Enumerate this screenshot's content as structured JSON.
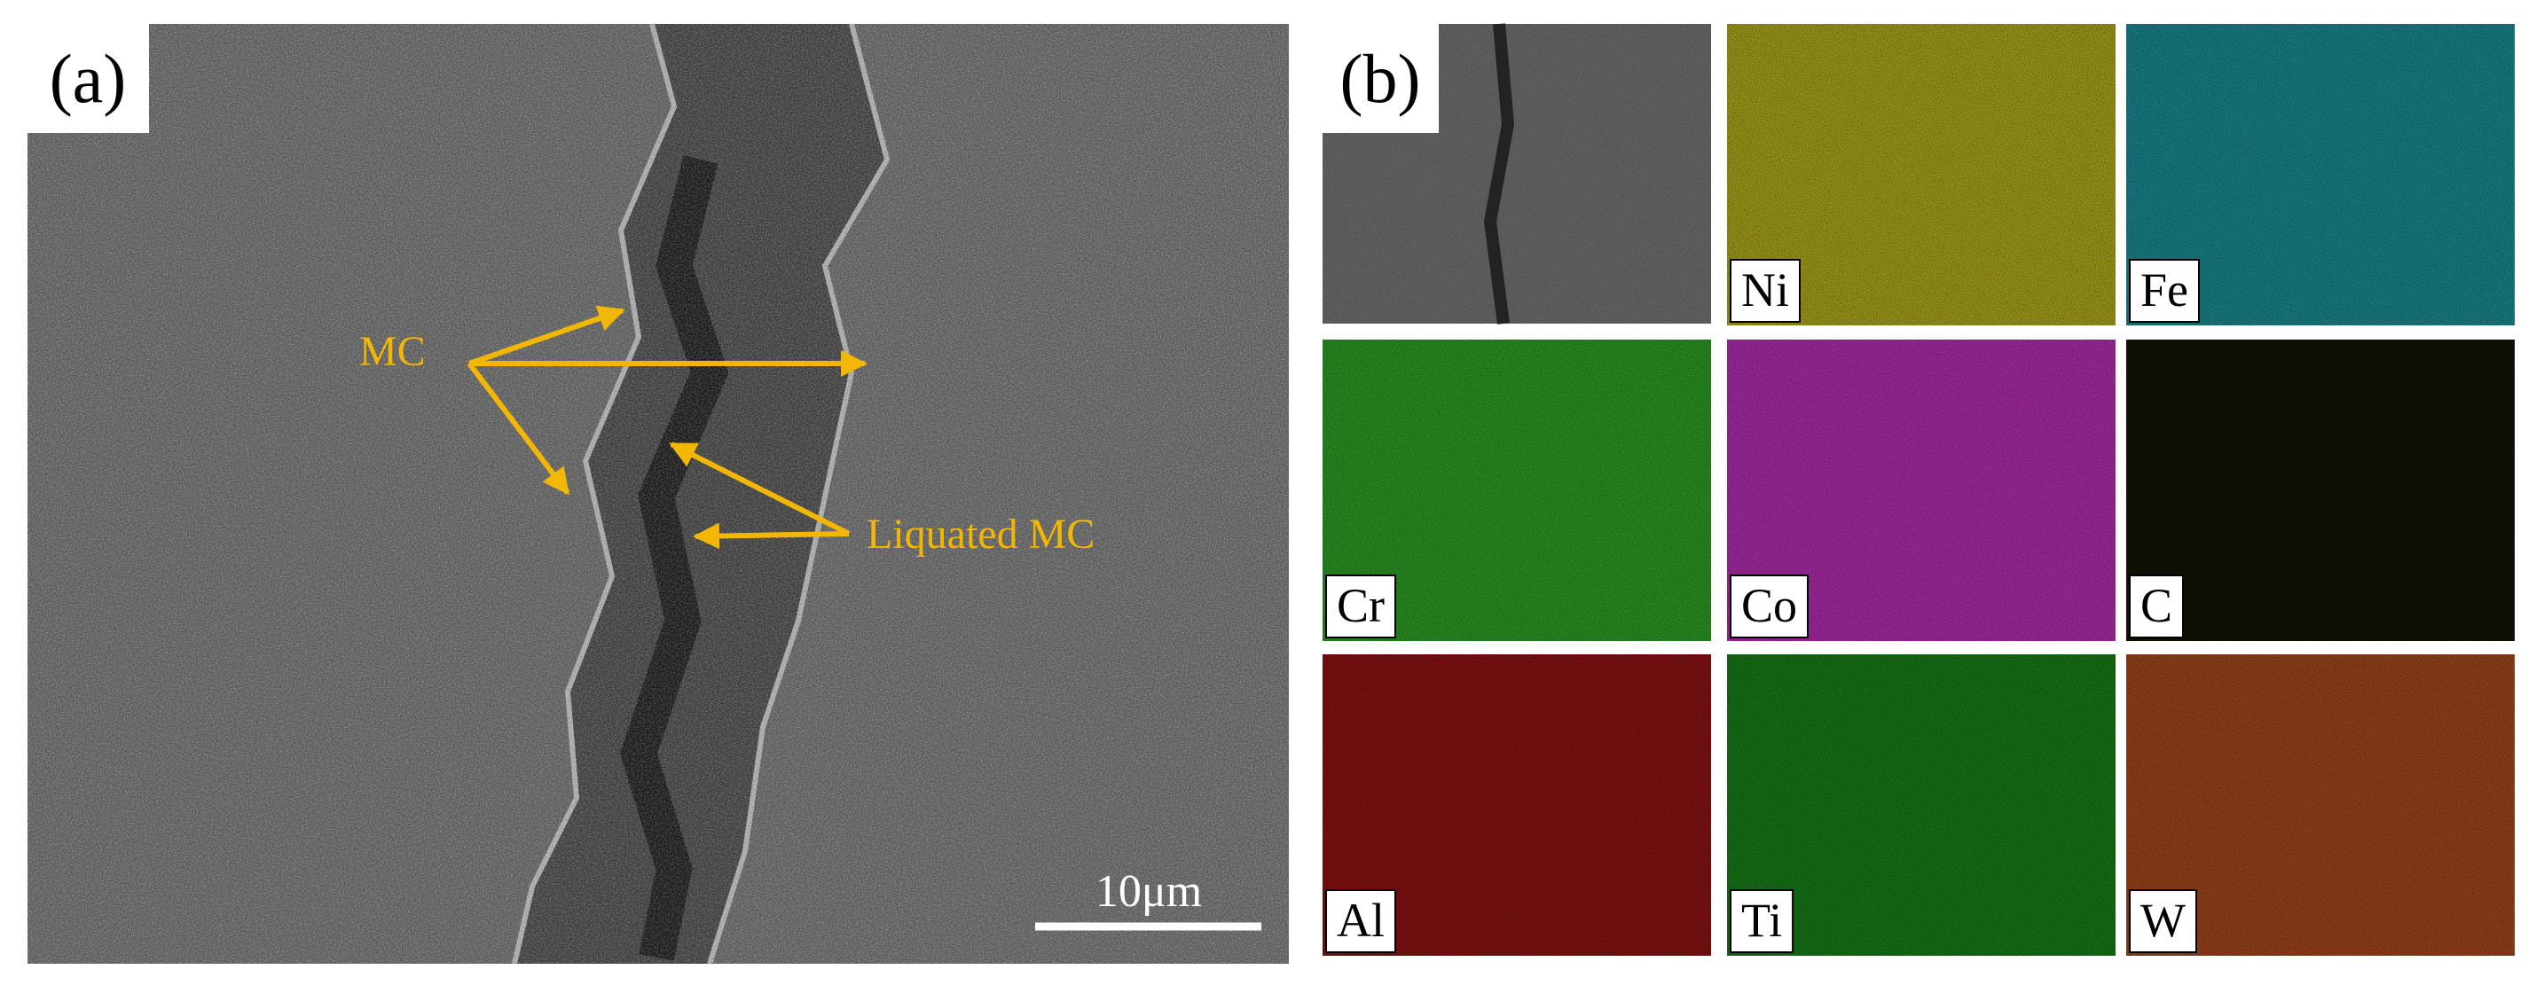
{
  "panel_a": {
    "label": "(a)",
    "annotations": [
      "MC",
      "Liquated MC"
    ],
    "scale_bar": "10μm"
  },
  "panel_b": {
    "label": "(b)",
    "maps": [
      "Ni",
      "Fe",
      "Cr",
      "Co",
      "C",
      "Al",
      "Ti",
      "W"
    ]
  }
}
